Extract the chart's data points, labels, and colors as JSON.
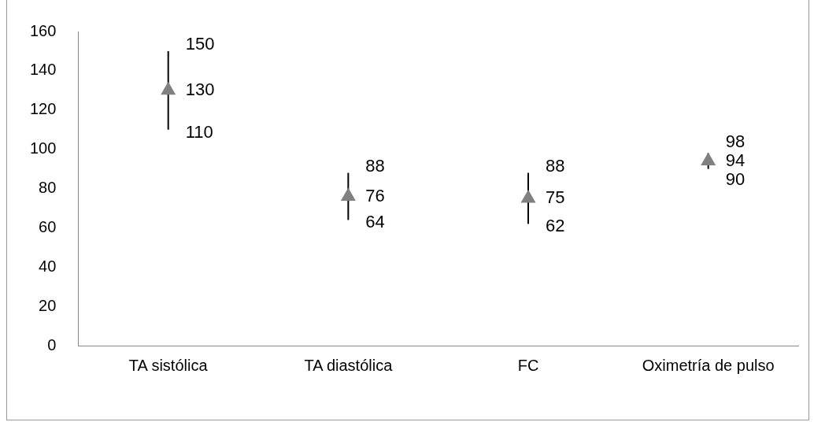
{
  "chart_data": {
    "type": "scatter",
    "categories": [
      "TA sistólica",
      "TA diastólica",
      "FC",
      "Oximetría de pulso"
    ],
    "series": [
      {
        "color": "#808080",
        "values": [
          130,
          76,
          75,
          94
        ],
        "errors": [
          [
            110,
            150
          ],
          [
            64,
            88
          ],
          [
            62,
            88
          ],
          [
            90,
            98
          ]
        ]
      }
    ],
    "annotations": [
      {
        "text": "150",
        "x": "TA sistólica",
        "y": 150
      },
      {
        "text": "110",
        "x": "TA sistólica",
        "y": 110
      },
      {
        "text": "88",
        "x": "TA diastólica",
        "y": 88
      },
      {
        "text": "64",
        "x": "TA diastólica",
        "y": 64
      },
      {
        "text": "88",
        "x": "FC",
        "y": 88
      },
      {
        "text": "62",
        "x": "FC",
        "y": 62
      },
      {
        "text": "98",
        "x": "Oximetría de pulso",
        "y": 98
      },
      {
        "text": "90",
        "x": "Oximetría de pulso",
        "y": 90
      }
    ],
    "ylim": [
      0,
      160
    ],
    "yticks": [
      0,
      20,
      40,
      60,
      80,
      100,
      120,
      140,
      160
    ],
    "grid": false,
    "legend": false,
    "marker": "triangle",
    "data_labels": true
  }
}
